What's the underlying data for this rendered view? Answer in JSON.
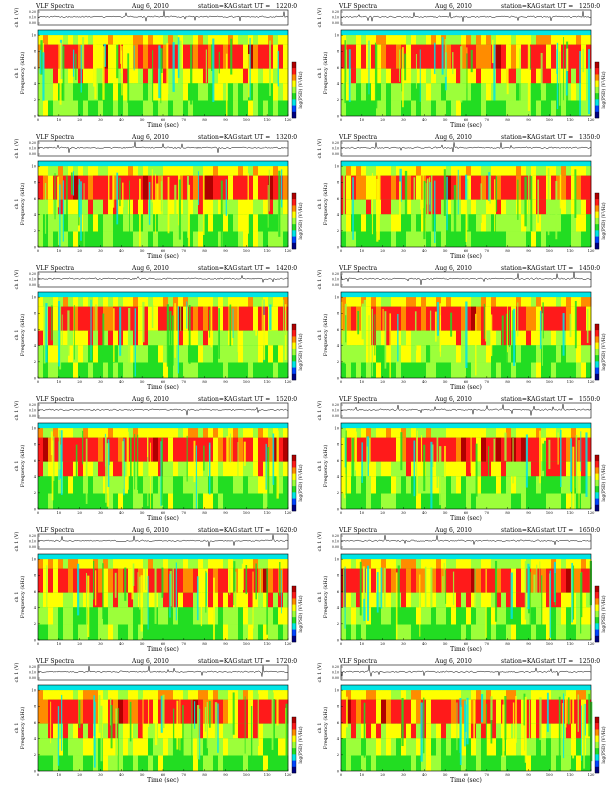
{
  "common": {
    "header_left": "VLF Spectra",
    "date": "Aug 6, 2010",
    "station": "station=KAG",
    "start_prefix": "start  UT =",
    "wave_ylabel": "ch 1 (V)",
    "spec_ylabel_top": "ch 1",
    "spec_ylabel": "Frequency  (kHz)",
    "xlabel": "Time  (sec)",
    "colorbar_label": "log(PSD) (V²/Hz)",
    "colors": {
      "dark_red": "#b00000",
      "red": "#ff1a1a",
      "orange": "#ff8c00",
      "yellow": "#ffff00",
      "light_green": "#9cff3a",
      "green": "#22dd22",
      "cyan": "#00e5e5",
      "blue": "#0044ff",
      "navy": "#000080"
    }
  },
  "chart_data": [
    {
      "type": "heatmap",
      "start": "1220:0",
      "xlim": [
        0,
        120
      ],
      "ylim": [
        0,
        10
      ],
      "wave_ylim": [
        0,
        0.2
      ],
      "xticks": [
        0,
        10,
        20,
        30,
        40,
        50,
        60,
        70,
        80,
        90,
        100,
        110,
        120
      ],
      "yticks": [
        0,
        2,
        4,
        6,
        8,
        10
      ],
      "wave_yticks": [
        "0.20",
        "0.10",
        "0.00"
      ]
    },
    {
      "type": "heatmap",
      "start": "1250:0",
      "xlim": [
        0,
        120
      ],
      "ylim": [
        0,
        10
      ],
      "wave_ylim": [
        0,
        0.2
      ],
      "xticks": [
        0,
        10,
        20,
        30,
        40,
        50,
        60,
        70,
        80,
        90,
        100,
        110,
        120
      ],
      "yticks": [
        0,
        2,
        4,
        6,
        8,
        10
      ],
      "wave_yticks": [
        "0.20",
        "0.10",
        "0.00"
      ]
    },
    {
      "type": "heatmap",
      "start": "1320:0",
      "xlim": [
        0,
        120
      ],
      "ylim": [
        0,
        10
      ],
      "wave_ylim": [
        0,
        0.2
      ],
      "xticks": [
        0,
        10,
        20,
        30,
        40,
        50,
        60,
        70,
        80,
        90,
        100,
        110,
        120
      ],
      "yticks": [
        0,
        2,
        4,
        6,
        8,
        10
      ],
      "wave_yticks": [
        "0.20",
        "0.10",
        "0.00"
      ]
    },
    {
      "type": "heatmap",
      "start": "1350:0",
      "xlim": [
        0,
        120
      ],
      "ylim": [
        0,
        10
      ],
      "wave_ylim": [
        0,
        0.2
      ],
      "xticks": [
        0,
        10,
        20,
        30,
        40,
        50,
        60,
        70,
        80,
        90,
        100,
        110,
        120
      ],
      "yticks": [
        0,
        2,
        4,
        6,
        8,
        10
      ],
      "wave_yticks": [
        "0.20",
        "0.10",
        "0.00"
      ]
    },
    {
      "type": "heatmap",
      "start": "1420:0",
      "xlim": [
        0,
        120
      ],
      "ylim": [
        0,
        10
      ],
      "wave_ylim": [
        0,
        0.2
      ],
      "xticks": [
        0,
        10,
        20,
        30,
        40,
        50,
        60,
        70,
        80,
        90,
        100,
        110,
        120
      ],
      "yticks": [
        0,
        2,
        4,
        6,
        8,
        10
      ],
      "wave_yticks": [
        "0.20",
        "0.10",
        "0.00"
      ]
    },
    {
      "type": "heatmap",
      "start": "1450:0",
      "xlim": [
        0,
        120
      ],
      "ylim": [
        0,
        10
      ],
      "wave_ylim": [
        0,
        0.2
      ],
      "xticks": [
        0,
        10,
        20,
        30,
        40,
        50,
        60,
        70,
        80,
        90,
        100,
        110,
        120
      ],
      "yticks": [
        0,
        2,
        4,
        6,
        8,
        10
      ],
      "wave_yticks": [
        "0.20",
        "0.10",
        "0.00"
      ]
    },
    {
      "type": "heatmap",
      "start": "1520:0",
      "xlim": [
        0,
        120
      ],
      "ylim": [
        0,
        10
      ],
      "wave_ylim": [
        0,
        0.2
      ],
      "xticks": [
        0,
        10,
        20,
        30,
        40,
        50,
        60,
        70,
        80,
        90,
        100,
        110,
        120
      ],
      "yticks": [
        0,
        2,
        4,
        6,
        8,
        10
      ],
      "wave_yticks": [
        "0.20",
        "0.10",
        "0.00"
      ]
    },
    {
      "type": "heatmap",
      "start": "1550:0",
      "xlim": [
        0,
        120
      ],
      "ylim": [
        0,
        10
      ],
      "wave_ylim": [
        0,
        0.2
      ],
      "xticks": [
        0,
        10,
        20,
        30,
        40,
        50,
        60,
        70,
        80,
        90,
        100,
        110,
        120
      ],
      "yticks": [
        0,
        2,
        4,
        6,
        8,
        10
      ],
      "wave_yticks": [
        "0.20",
        "0.10",
        "0.00"
      ]
    },
    {
      "type": "heatmap",
      "start": "1620:0",
      "xlim": [
        0,
        120
      ],
      "ylim": [
        0,
        10
      ],
      "wave_ylim": [
        0,
        0.2
      ],
      "xticks": [
        0,
        10,
        20,
        30,
        40,
        50,
        60,
        70,
        80,
        90,
        100,
        110,
        120
      ],
      "yticks": [
        0,
        2,
        4,
        6,
        8,
        10
      ],
      "wave_yticks": [
        "0.20",
        "0.10",
        "0.00"
      ]
    },
    {
      "type": "heatmap",
      "start": "1650:0",
      "xlim": [
        0,
        120
      ],
      "ylim": [
        0,
        10
      ],
      "wave_ylim": [
        0,
        0.2
      ],
      "xticks": [
        0,
        10,
        20,
        30,
        40,
        50,
        60,
        70,
        80,
        90,
        100,
        110,
        120
      ],
      "yticks": [
        0,
        2,
        4,
        6,
        8,
        10
      ],
      "wave_yticks": [
        "0.20",
        "0.10",
        "0.00"
      ]
    },
    {
      "type": "heatmap",
      "start": "1720:0",
      "xlim": [
        0,
        120
      ],
      "ylim": [
        0,
        10
      ],
      "wave_ylim": [
        0,
        0.2
      ],
      "xticks": [
        0,
        10,
        20,
        30,
        40,
        50,
        60,
        70,
        80,
        90,
        100,
        110,
        120
      ],
      "yticks": [
        0,
        2,
        4,
        6,
        8,
        10
      ],
      "wave_yticks": [
        "0.20",
        "0.10",
        "0.00"
      ]
    },
    {
      "type": "heatmap",
      "start": "1250:0",
      "xlim": [
        0,
        120
      ],
      "ylim": [
        0,
        10
      ],
      "wave_ylim": [
        0,
        0.2
      ],
      "xticks": [
        0,
        10,
        20,
        30,
        40,
        50,
        60,
        70,
        80,
        90,
        100,
        110,
        120
      ],
      "yticks": [
        0,
        2,
        4,
        6,
        8,
        10
      ],
      "wave_yticks": [
        "0.20",
        "0.10",
        "0.00"
      ]
    }
  ]
}
